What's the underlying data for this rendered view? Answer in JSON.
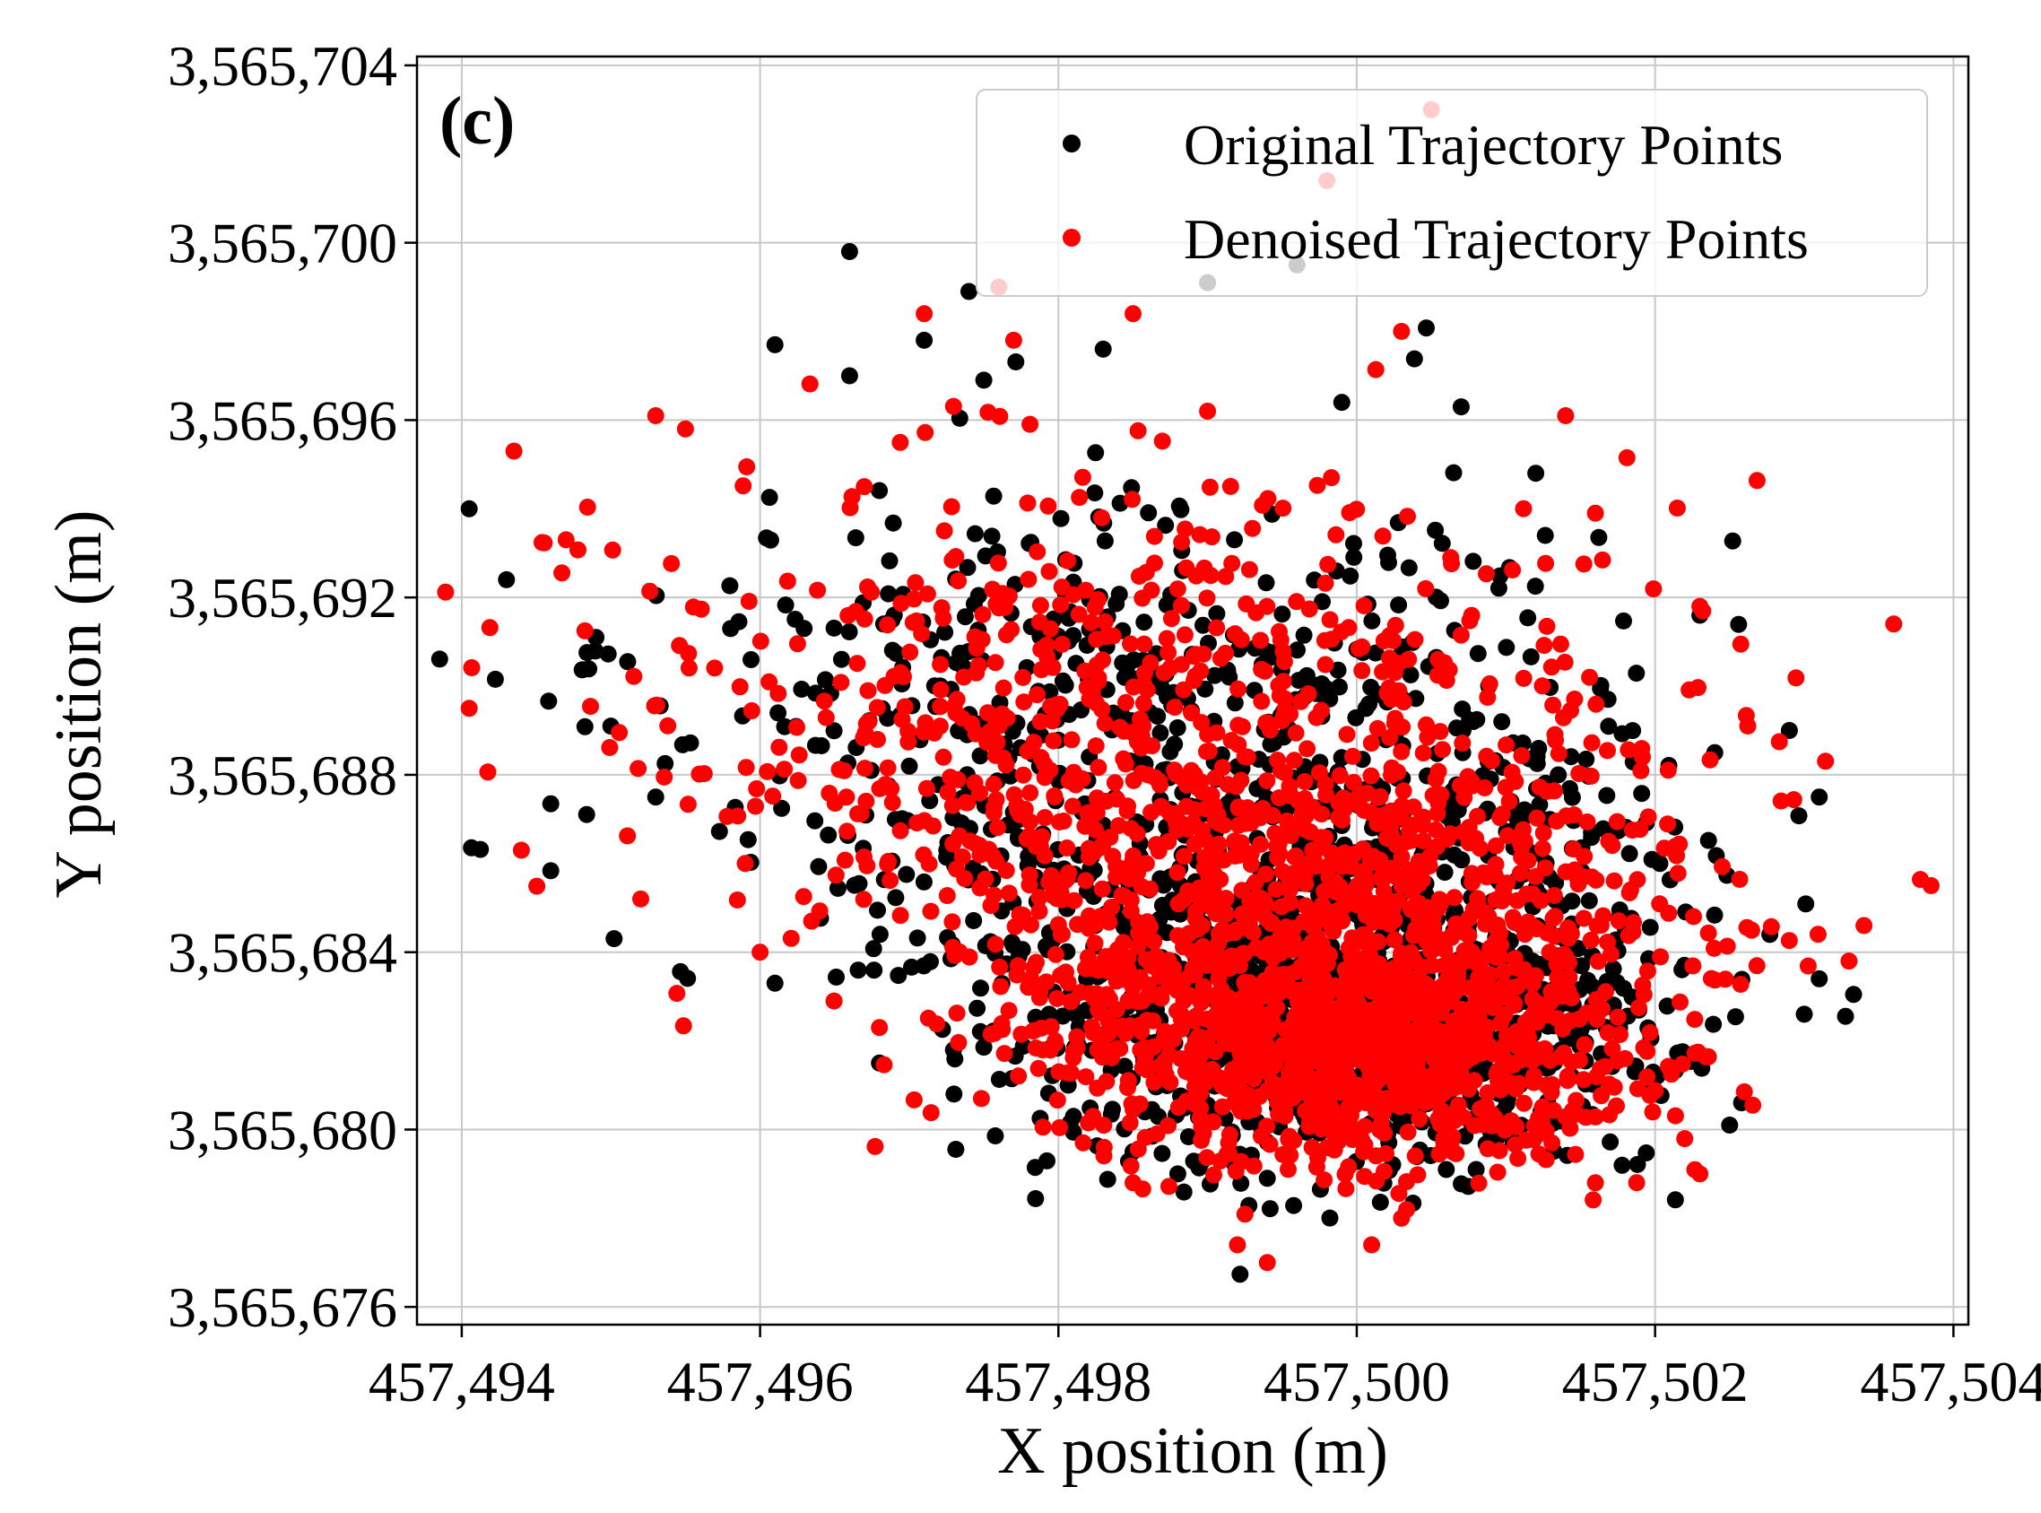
{
  "chart_data": {
    "type": "scatter",
    "panel_label": "(c)",
    "xlabel": "X position (m)",
    "ylabel": "Y position (m)",
    "xlim": [
      457493.7,
      457504.1
    ],
    "ylim": [
      3565675.6,
      3565704.2
    ],
    "grid": true,
    "legend_position": "top-right",
    "x_ticks": [
      457494,
      457496,
      457498,
      457500,
      457502,
      457504
    ],
    "x_tick_labels": [
      "457,494",
      "457,496",
      "457,498",
      "457,500",
      "457,502",
      "457,504"
    ],
    "y_ticks": [
      3565676,
      3565680,
      3565684,
      3565688,
      3565692,
      3565696,
      3565700,
      3565704
    ],
    "y_tick_labels": [
      "3,565,676",
      "3,565,680",
      "3,565,684",
      "3,565,688",
      "3,565,692",
      "3,565,696",
      "3,565,700",
      "3,565,704"
    ],
    "series": [
      {
        "name": "Original Trajectory Points",
        "color": "#000000",
        "sample_points": [
          [
            457494.05,
            3565694.0
          ],
          [
            457494.3,
            3565692.4
          ],
          [
            457494.9,
            3565691.1
          ],
          [
            457495.0,
            3565689.1
          ],
          [
            457496.1,
            3565697.7
          ],
          [
            457496.6,
            3565699.8
          ],
          [
            457496.6,
            3565697.0
          ],
          [
            457497.1,
            3565697.8
          ],
          [
            457497.4,
            3565698.9
          ],
          [
            457497.5,
            3565696.9
          ],
          [
            457498.3,
            3565697.6
          ],
          [
            457499.0,
            3565699.1
          ],
          [
            457499.6,
            3565699.5
          ],
          [
            457499.9,
            3565696.4
          ],
          [
            457500.7,
            3565696.3
          ],
          [
            457501.2,
            3565694.8
          ],
          [
            457502.3,
            3565691.6
          ],
          [
            457502.4,
            3565688.5
          ],
          [
            457502.5,
            3565680.1
          ],
          [
            457502.9,
            3565689.0
          ],
          [
            457503.1,
            3565687.5
          ],
          [
            457503.1,
            3565683.4
          ],
          [
            457503.0,
            3565682.6
          ],
          [
            457496.1,
            3565683.3
          ],
          [
            457496.8,
            3565681.5
          ],
          [
            457497.3,
            3565680.8
          ],
          [
            457498.5,
            3565679.5
          ],
          [
            457498.8,
            3565679.0
          ],
          [
            457499.4,
            3565678.9
          ],
          [
            457500.6,
            3565679.1
          ],
          [
            457500.8,
            3565679.1
          ],
          [
            457495.3,
            3565687.5
          ]
        ]
      },
      {
        "name": "Denoised Trajectory Points",
        "color": "#ff0000",
        "sample_points": [
          [
            457494.05,
            3565689.5
          ],
          [
            457494.35,
            3565695.3
          ],
          [
            457494.4,
            3565686.3
          ],
          [
            457494.7,
            3565693.3
          ],
          [
            457495.3,
            3565696.1
          ],
          [
            457495.2,
            3565685.2
          ],
          [
            457495.5,
            3565695.8
          ],
          [
            457496.0,
            3565684.0
          ],
          [
            457497.1,
            3565698.4
          ],
          [
            457497.6,
            3565699.0
          ],
          [
            457497.7,
            3565697.8
          ],
          [
            457498.5,
            3565698.4
          ],
          [
            457499.0,
            3565696.2
          ],
          [
            457500.3,
            3565698.0
          ],
          [
            457499.8,
            3565701.4
          ],
          [
            457500.5,
            3565703.0
          ],
          [
            457501.4,
            3565696.1
          ],
          [
            457501.6,
            3565693.9
          ],
          [
            457502.3,
            3565691.8
          ],
          [
            457502.3,
            3565679.0
          ],
          [
            457503.4,
            3565684.6
          ],
          [
            457503.6,
            3565691.4
          ],
          [
            457503.85,
            3565685.5
          ],
          [
            457499.2,
            3565677.4
          ],
          [
            457499.4,
            3565677.0
          ],
          [
            457500.1,
            3565677.4
          ],
          [
            457500.3,
            3565678.0
          ],
          [
            457498.5,
            3565678.8
          ],
          [
            457501.6,
            3565678.8
          ],
          [
            457503.3,
            3565683.8
          ],
          [
            457496.8,
            3565682.3
          ],
          [
            457495.9,
            3565686.0
          ]
        ]
      }
    ]
  }
}
